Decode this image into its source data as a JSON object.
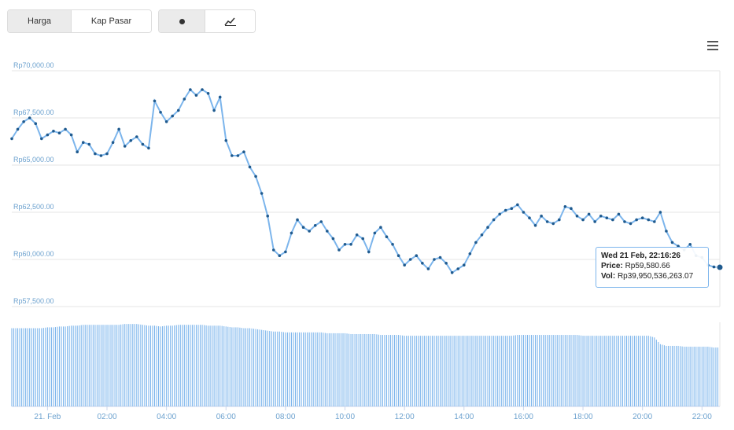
{
  "toolbar": {
    "metric_tabs": [
      {
        "label": "Harga",
        "active": true
      },
      {
        "label": "Kap Pasar",
        "active": false
      }
    ],
    "chart_type_buttons": [
      {
        "icon": "scatter-dot-icon",
        "active": true
      },
      {
        "icon": "line-chart-icon",
        "active": false
      }
    ],
    "menu_icon": "hamburger-menu-icon"
  },
  "colors": {
    "line": "#7cb5ec",
    "point": "#1f5a8e",
    "volume": "#7cb5ec",
    "axis_label": "#6da2cf",
    "grid": "#e6e6e6"
  },
  "tooltip": {
    "date": "Wed 21 Feb, 22:16:26",
    "price_label": "Price:",
    "price_value": "Rp59,580.66",
    "vol_label": "Vol:",
    "vol_value": "Rp39,950,536,263.07"
  },
  "chart_data": {
    "type": "line",
    "y_ticks": [
      "Rp70,000.00",
      "Rp67,500.00",
      "Rp65,000.00",
      "Rp62,500.00",
      "Rp60,000.00",
      "Rp57,500.00"
    ],
    "y_tick_values": [
      70000,
      67500,
      65000,
      62500,
      60000,
      57500
    ],
    "ylim": [
      57500,
      70000
    ],
    "x_ticks": [
      "21. Feb",
      "02:00",
      "04:00",
      "06:00",
      "08:00",
      "10:00",
      "12:00",
      "14:00",
      "16:00",
      "18:00",
      "20:00",
      "22:00"
    ],
    "x_tick_hours": [
      0,
      2,
      4,
      6,
      8,
      10,
      12,
      14,
      16,
      18,
      20,
      22
    ],
    "xlim_hours": [
      -1.2,
      22.6
    ],
    "price_series": {
      "hours": [
        -1.2,
        -1.0,
        -0.8,
        -0.6,
        -0.4,
        -0.2,
        0.0,
        0.2,
        0.4,
        0.6,
        0.8,
        1.0,
        1.2,
        1.4,
        1.6,
        1.8,
        2.0,
        2.2,
        2.4,
        2.6,
        2.8,
        3.0,
        3.2,
        3.4,
        3.6,
        3.8,
        4.0,
        4.2,
        4.4,
        4.6,
        4.8,
        5.0,
        5.2,
        5.4,
        5.6,
        5.8,
        6.0,
        6.2,
        6.4,
        6.6,
        6.8,
        7.0,
        7.2,
        7.4,
        7.6,
        7.8,
        8.0,
        8.2,
        8.4,
        8.6,
        8.8,
        9.0,
        9.2,
        9.4,
        9.6,
        9.8,
        10.0,
        10.2,
        10.4,
        10.6,
        10.8,
        11.0,
        11.2,
        11.4,
        11.6,
        11.8,
        12.0,
        12.2,
        12.4,
        12.6,
        12.8,
        13.0,
        13.2,
        13.4,
        13.6,
        13.8,
        14.0,
        14.2,
        14.4,
        14.6,
        14.8,
        15.0,
        15.2,
        15.4,
        15.6,
        15.8,
        16.0,
        16.2,
        16.4,
        16.6,
        16.8,
        17.0,
        17.2,
        17.4,
        17.6,
        17.8,
        18.0,
        18.2,
        18.4,
        18.6,
        18.8,
        19.0,
        19.2,
        19.4,
        19.6,
        19.8,
        20.0,
        20.2,
        20.4,
        20.6,
        20.8,
        21.0,
        21.2,
        21.4,
        21.6,
        21.8,
        22.0,
        22.2,
        22.4,
        22.6
      ],
      "values": [
        66400,
        66900,
        67300,
        67500,
        67200,
        66400,
        66600,
        66800,
        66700,
        66900,
        66600,
        65700,
        66200,
        66100,
        65600,
        65500,
        65600,
        66200,
        66900,
        66000,
        66300,
        66500,
        66100,
        65900,
        68400,
        67800,
        67300,
        67600,
        67900,
        68500,
        69000,
        68700,
        69000,
        68800,
        67900,
        68600,
        66300,
        65500,
        65500,
        65700,
        64900,
        64400,
        63500,
        62300,
        60500,
        60200,
        60400,
        61400,
        62100,
        61700,
        61500,
        61800,
        62000,
        61500,
        61100,
        60500,
        60800,
        60800,
        61300,
        61100,
        60400,
        61400,
        61700,
        61200,
        60800,
        60200,
        59700,
        60000,
        60200,
        59800,
        59500,
        60000,
        60100,
        59800,
        59300,
        59500,
        59700,
        60300,
        60900,
        61300,
        61700,
        62100,
        62400,
        62600,
        62700,
        62900,
        62500,
        62200,
        61800,
        62300,
        62000,
        61900,
        62100,
        62800,
        62700,
        62300,
        62100,
        62400,
        62000,
        62300,
        62200,
        62100,
        62400,
        62000,
        61900,
        62100,
        62200,
        62100,
        62000,
        62500,
        61500,
        60900,
        60700,
        60500,
        60800,
        60200,
        60100,
        59700,
        59600,
        59581
      ]
    },
    "volume_series": {
      "hours": [
        -1.2,
        -1.0,
        -0.8,
        -0.6,
        -0.4,
        -0.2,
        0.0,
        0.2,
        0.4,
        0.6,
        0.8,
        1.0,
        1.2,
        1.4,
        1.6,
        1.8,
        2.0,
        2.2,
        2.4,
        2.6,
        2.8,
        3.0,
        3.2,
        3.4,
        3.6,
        3.8,
        4.0,
        4.2,
        4.4,
        4.6,
        4.8,
        5.0,
        5.2,
        5.4,
        5.6,
        5.8,
        6.0,
        6.2,
        6.4,
        6.6,
        6.8,
        7.0,
        7.2,
        7.4,
        7.6,
        7.8,
        8.0,
        8.2,
        8.4,
        8.6,
        8.8,
        9.0,
        9.2,
        9.4,
        9.6,
        9.8,
        10.0,
        10.2,
        10.4,
        10.6,
        10.8,
        11.0,
        11.2,
        11.4,
        11.6,
        11.8,
        12.0,
        12.2,
        12.4,
        12.6,
        12.8,
        13.0,
        13.2,
        13.4,
        13.6,
        13.8,
        14.0,
        14.2,
        14.4,
        14.6,
        14.8,
        15.0,
        15.2,
        15.4,
        15.6,
        15.8,
        16.0,
        16.2,
        16.4,
        16.6,
        16.8,
        17.0,
        17.2,
        17.4,
        17.6,
        17.8,
        18.0,
        18.2,
        18.4,
        18.6,
        18.8,
        19.0,
        19.2,
        19.4,
        19.6,
        19.8,
        20.0,
        20.2,
        20.4,
        20.6,
        20.8,
        21.0,
        21.2,
        21.4,
        21.6,
        21.8,
        22.0,
        22.2,
        22.4,
        22.6
      ],
      "relative": [
        0.93,
        0.93,
        0.93,
        0.93,
        0.93,
        0.93,
        0.94,
        0.94,
        0.95,
        0.95,
        0.96,
        0.96,
        0.97,
        0.97,
        0.97,
        0.97,
        0.97,
        0.97,
        0.97,
        0.98,
        0.98,
        0.98,
        0.97,
        0.96,
        0.96,
        0.95,
        0.96,
        0.96,
        0.97,
        0.97,
        0.97,
        0.97,
        0.97,
        0.96,
        0.96,
        0.96,
        0.95,
        0.94,
        0.94,
        0.93,
        0.93,
        0.92,
        0.91,
        0.9,
        0.89,
        0.89,
        0.88,
        0.88,
        0.88,
        0.88,
        0.88,
        0.88,
        0.88,
        0.87,
        0.87,
        0.87,
        0.87,
        0.86,
        0.86,
        0.86,
        0.86,
        0.86,
        0.85,
        0.85,
        0.85,
        0.85,
        0.84,
        0.84,
        0.84,
        0.84,
        0.84,
        0.84,
        0.84,
        0.84,
        0.84,
        0.84,
        0.84,
        0.84,
        0.84,
        0.84,
        0.84,
        0.84,
        0.84,
        0.84,
        0.84,
        0.85,
        0.85,
        0.85,
        0.85,
        0.85,
        0.85,
        0.85,
        0.85,
        0.85,
        0.85,
        0.85,
        0.84,
        0.84,
        0.84,
        0.84,
        0.84,
        0.84,
        0.84,
        0.84,
        0.84,
        0.84,
        0.84,
        0.84,
        0.82,
        0.74,
        0.72,
        0.72,
        0.72,
        0.71,
        0.71,
        0.71,
        0.71,
        0.71,
        0.7,
        0.7
      ]
    },
    "grid": true,
    "legend": "none"
  }
}
